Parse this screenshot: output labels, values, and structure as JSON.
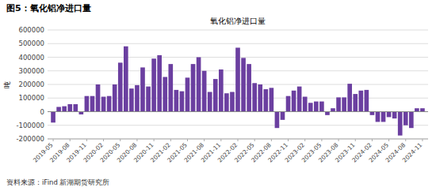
{
  "chart_data": {
    "type": "bar",
    "title": "图5：氧化铝净进口量",
    "subtitle": "氧化铝净进口量",
    "y_label": "吨",
    "source": "资料来源：iFind 新湖期货研究所",
    "color": "#6B3FA0",
    "grid": true,
    "ylim": [
      -200000,
      600000
    ],
    "yticks": [
      -200000,
      -100000,
      0,
      100000,
      200000,
      300000,
      400000,
      500000,
      600000
    ],
    "categories": [
      "2019-05",
      null,
      null,
      "2019-08",
      null,
      null,
      "2019-11",
      null,
      null,
      "2020-02",
      null,
      null,
      "2020-05",
      null,
      null,
      "2020-08",
      null,
      null,
      "2020-11",
      null,
      null,
      "2021-02",
      null,
      null,
      "2021-05",
      null,
      null,
      "2021-08",
      null,
      null,
      "2021-11",
      null,
      null,
      "2022-02",
      null,
      null,
      "2022-05",
      null,
      null,
      "2022-08",
      null,
      null,
      "2022-11",
      null,
      null,
      "2023-02",
      null,
      null,
      "2023-05",
      null,
      null,
      "2023-08",
      null,
      null,
      "2023-11",
      null,
      null,
      "2024-02",
      null,
      null,
      "2024-05",
      null,
      null,
      "2024-08",
      null,
      null,
      "2024-11"
    ],
    "values": [
      -80000,
      35000,
      40000,
      55000,
      55000,
      -20000,
      115000,
      115000,
      200000,
      110000,
      115000,
      200000,
      360000,
      480000,
      170000,
      195000,
      325000,
      185000,
      390000,
      415000,
      255000,
      350000,
      160000,
      150000,
      250000,
      350000,
      400000,
      300000,
      145000,
      240000,
      310000,
      135000,
      145000,
      470000,
      395000,
      350000,
      210000,
      200000,
      165000,
      175000,
      -120000,
      -60000,
      115000,
      155000,
      185000,
      110000,
      65000,
      75000,
      75000,
      -25000,
      25000,
      105000,
      105000,
      205000,
      130000,
      155000,
      160000,
      -25000,
      -75000,
      -75000,
      -40000,
      -50000,
      -175000,
      -100000,
      -120000,
      25000,
      25000
    ]
  }
}
